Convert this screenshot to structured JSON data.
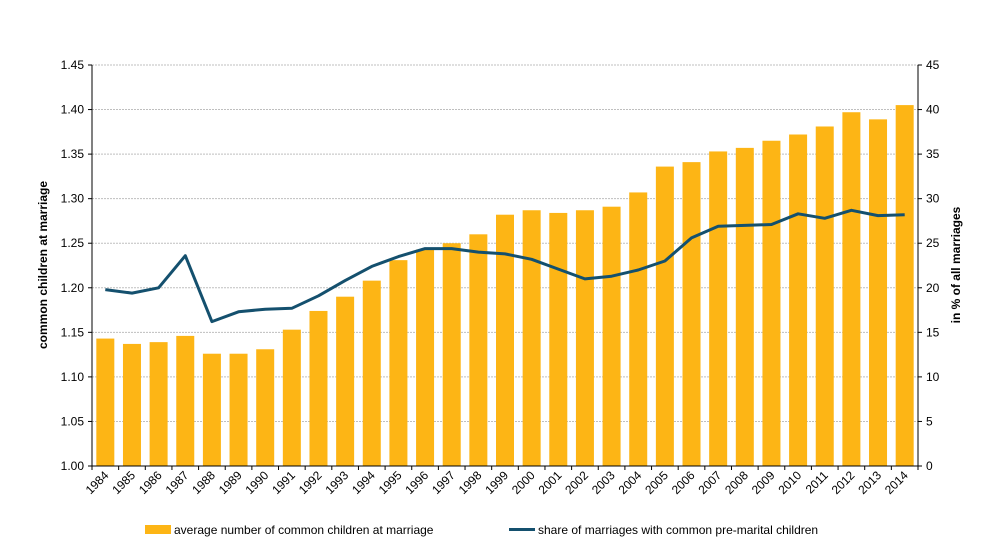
{
  "chart_data": {
    "type": "bar",
    "categories": [
      "1984",
      "1985",
      "1986",
      "1987",
      "1988",
      "1989",
      "1990",
      "1991",
      "1992",
      "1993",
      "1994",
      "1995",
      "1996",
      "1997",
      "1998",
      "1999",
      "2000",
      "2001",
      "2002",
      "2003",
      "2004",
      "2005",
      "2006",
      "2007",
      "2008",
      "2009",
      "2010",
      "2011",
      "2012",
      "2013",
      "2014"
    ],
    "series": [
      {
        "name": "average number of common children at marriage",
        "type": "bar",
        "axis": "left",
        "values": [
          1.143,
          1.137,
          1.139,
          1.146,
          1.126,
          1.126,
          1.131,
          1.153,
          1.174,
          1.19,
          1.208,
          1.231,
          1.243,
          1.25,
          1.26,
          1.282,
          1.287,
          1.284,
          1.287,
          1.291,
          1.307,
          1.336,
          1.341,
          1.353,
          1.357,
          1.365,
          1.372,
          1.381,
          1.397,
          1.389,
          1.405
        ]
      },
      {
        "name": "share of marriages with common pre-marital children",
        "type": "line",
        "axis": "right",
        "values": [
          19.8,
          19.4,
          20.0,
          23.6,
          16.2,
          17.3,
          17.6,
          17.7,
          19.1,
          20.8,
          22.4,
          23.5,
          24.4,
          24.4,
          24.0,
          23.8,
          23.2,
          22.1,
          21.0,
          21.3,
          22.0,
          23.0,
          25.6,
          26.9,
          27.0,
          27.1,
          28.3,
          27.8,
          28.7,
          28.1,
          28.2
        ]
      }
    ],
    "ylabel_left": "common children at marriage",
    "ylabel_right": "in % of all marriages",
    "ylim_left": [
      1.0,
      1.45
    ],
    "ylim_right": [
      0,
      45
    ],
    "yticks_left": [
      "1.00",
      "1.05",
      "1.10",
      "1.15",
      "1.20",
      "1.25",
      "1.30",
      "1.35",
      "1.40",
      "1.45"
    ],
    "yticks_right": [
      "0",
      "5",
      "10",
      "15",
      "20",
      "25",
      "30",
      "35",
      "40",
      "45"
    ],
    "grid": true,
    "legend": "bottom",
    "colors": {
      "bar": "#FDB515",
      "line": "#14506E",
      "grid": "#BFBFBF"
    }
  }
}
